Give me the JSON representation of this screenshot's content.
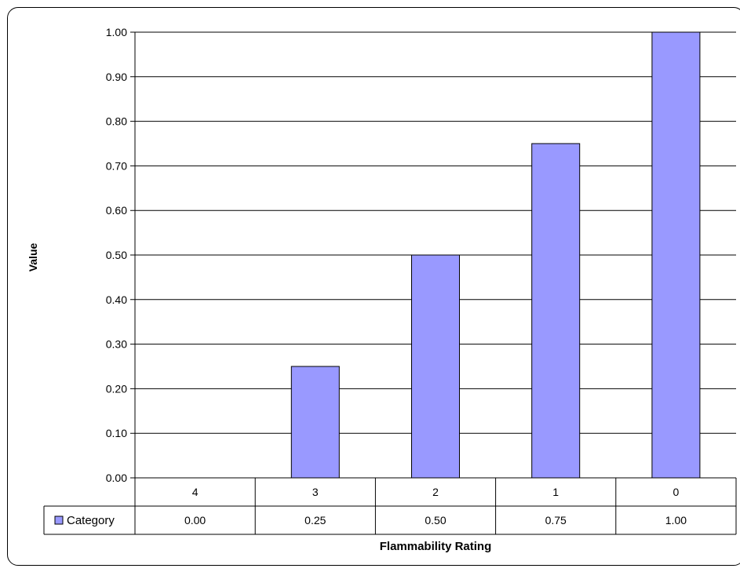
{
  "chart_data": {
    "type": "bar",
    "categories": [
      "4",
      "3",
      "2",
      "1",
      "0"
    ],
    "series": [
      {
        "name": "Category",
        "values": [
          0.0,
          0.25,
          0.5,
          0.75,
          1.0
        ],
        "color": "#9999ff"
      }
    ],
    "table_values": [
      "0.00",
      "0.25",
      "0.50",
      "0.75",
      "1.00"
    ],
    "xlabel": "Flammability Rating",
    "ylabel": "Value",
    "ylim": [
      0,
      1
    ],
    "yticks": [
      "0.00",
      "0.10",
      "0.20",
      "0.30",
      "0.40",
      "0.50",
      "0.60",
      "0.70",
      "0.80",
      "0.90",
      "1.00"
    ],
    "grid": true,
    "legend": "data-table",
    "data_table": true
  }
}
